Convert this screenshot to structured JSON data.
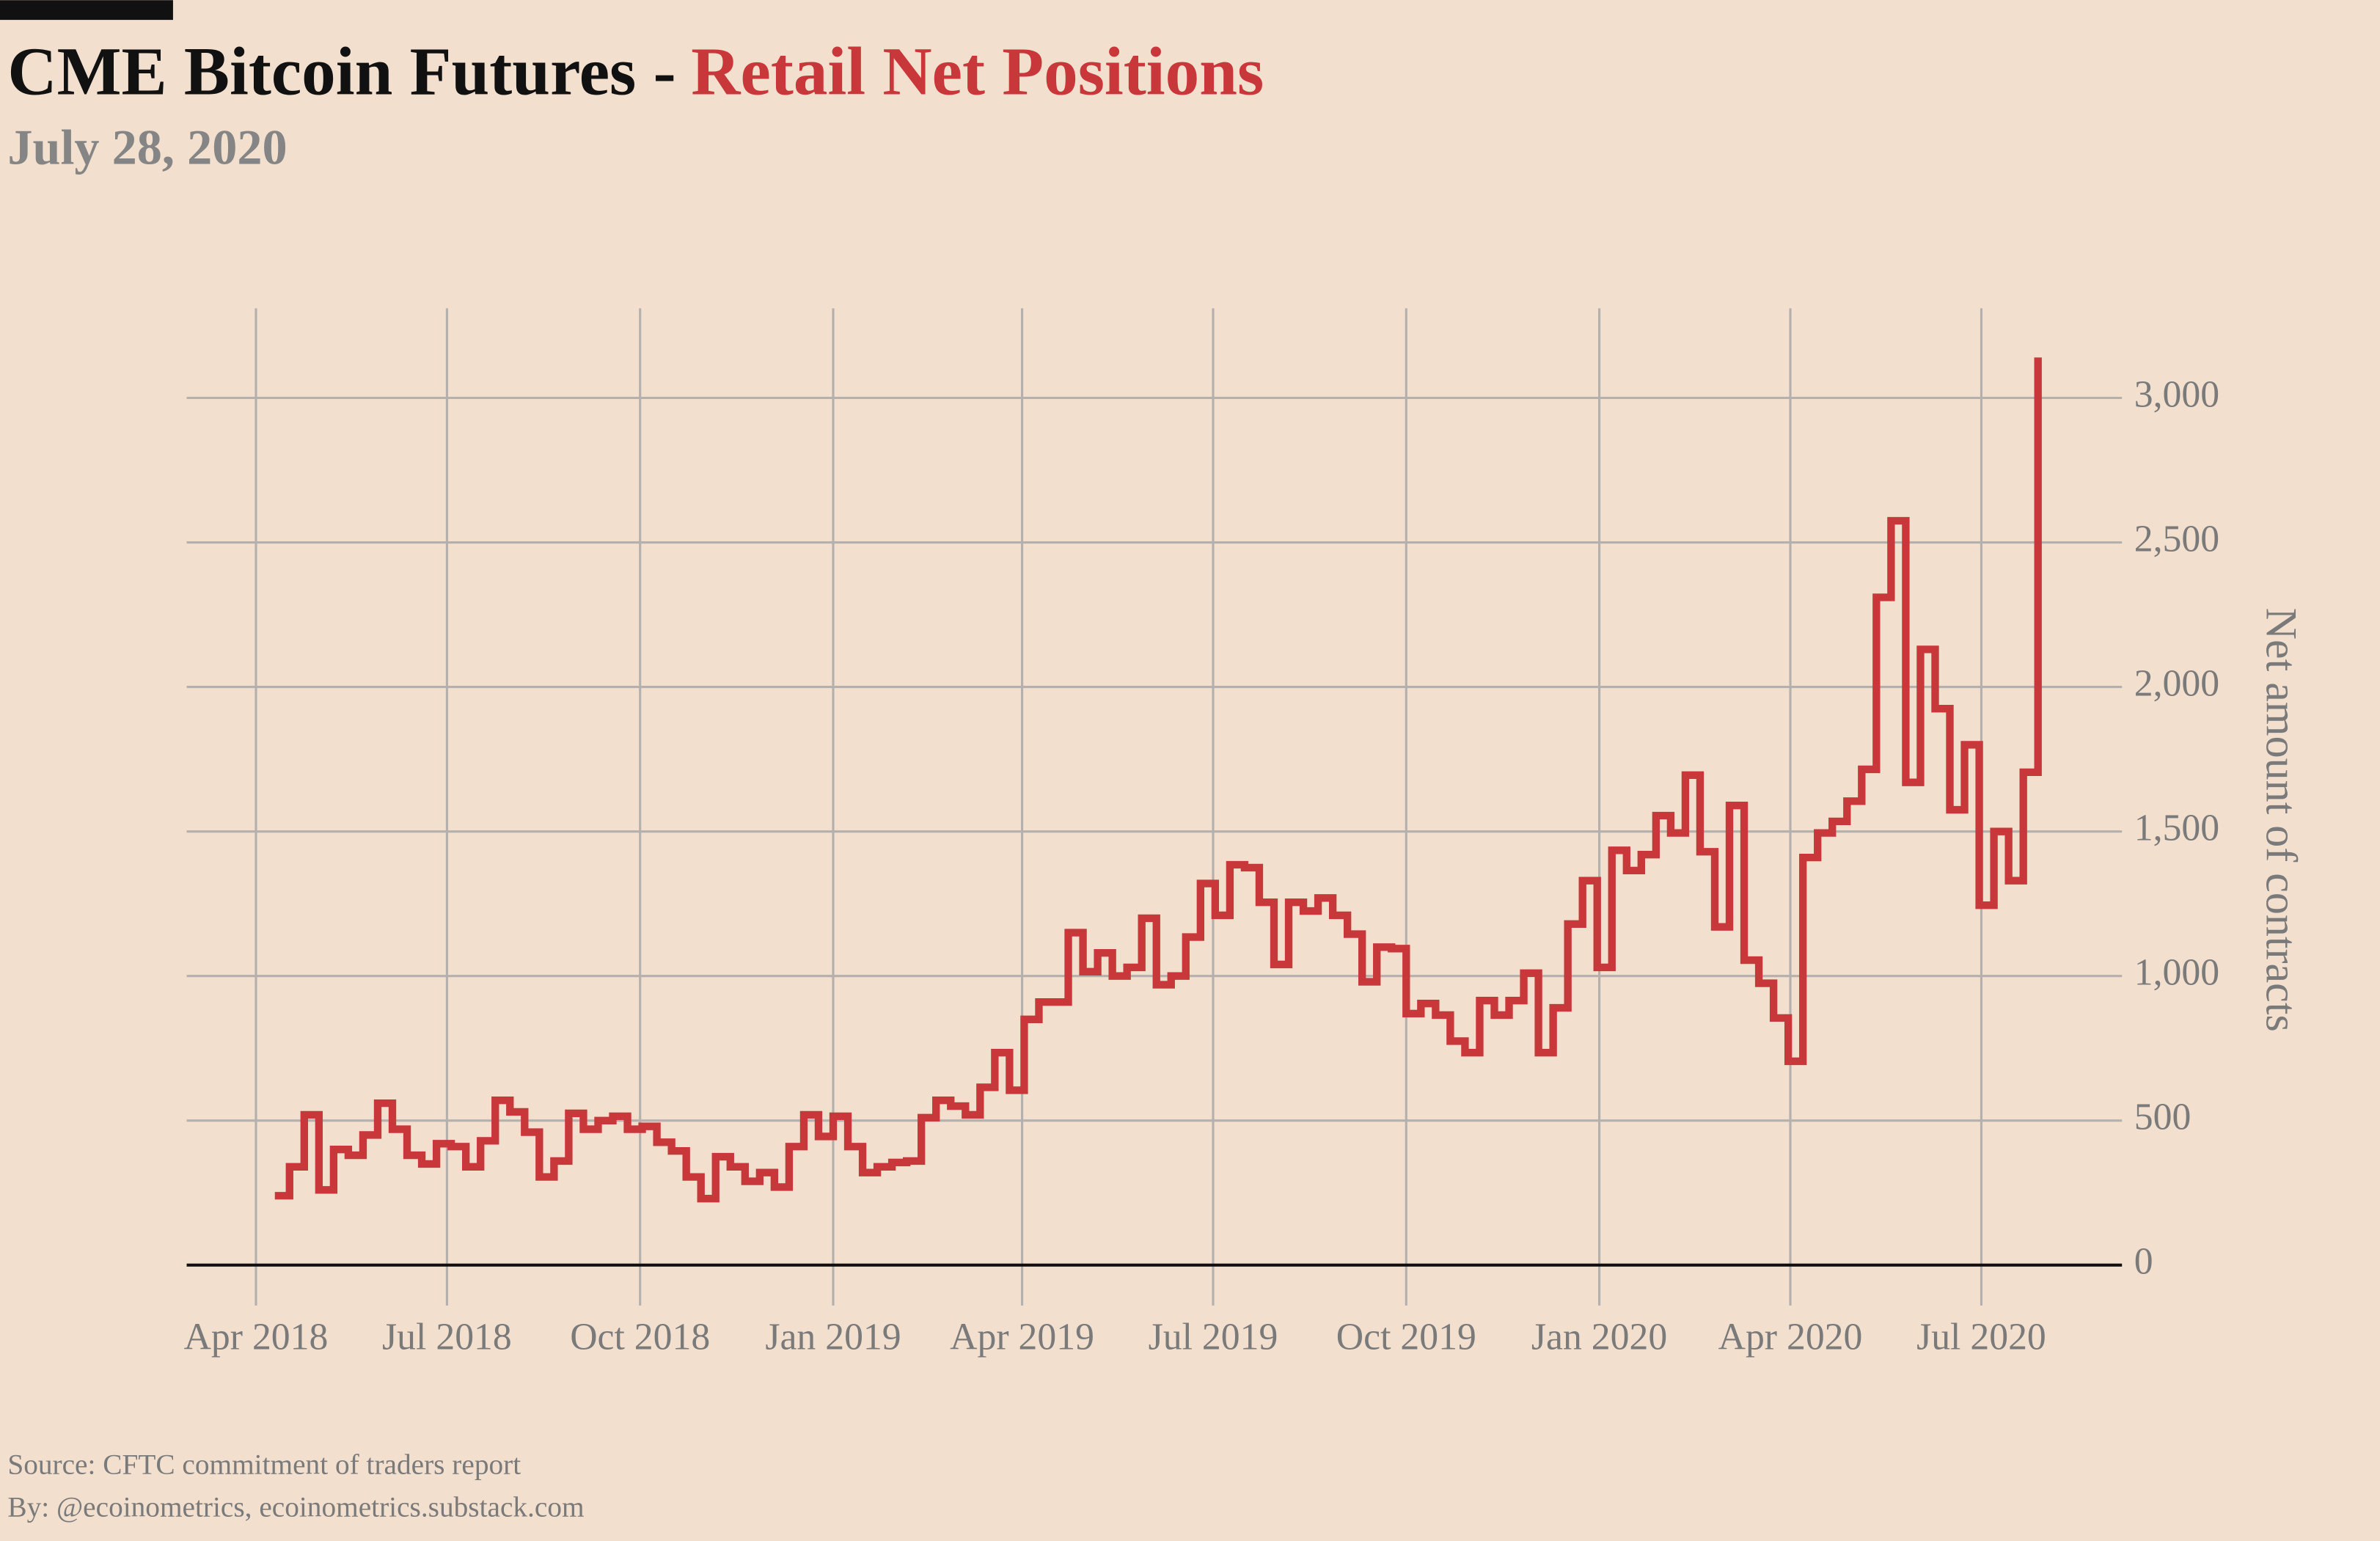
{
  "chart_data": {
    "type": "step",
    "title": "CME Bitcoin Futures -",
    "title_highlight": "Retail Net Positions",
    "subtitle": "July 28, 2020",
    "y_label": "Net amount of contracts",
    "source": "Source: CFTC commitment of traders report",
    "byline": "By: @ecoinometrics, ecoinometrics.substack.com",
    "xlim": [
      "2018-02-27",
      "2020-09-06"
    ],
    "xticks": [
      {
        "value": "2018-04-01",
        "label": "Apr 2018"
      },
      {
        "value": "2018-07-01",
        "label": "Jul 2018"
      },
      {
        "value": "2018-10-01",
        "label": "Oct 2018"
      },
      {
        "value": "2019-01-01",
        "label": "Jan 2019"
      },
      {
        "value": "2019-04-01",
        "label": "Apr 2019"
      },
      {
        "value": "2019-07-01",
        "label": "Jul 2019"
      },
      {
        "value": "2019-10-01",
        "label": "Oct 2019"
      },
      {
        "value": "2020-01-01",
        "label": "Jan 2020"
      },
      {
        "value": "2020-04-01",
        "label": "Apr 2020"
      },
      {
        "value": "2020-07-01",
        "label": "Jul 2020"
      }
    ],
    "ylim": [
      -140,
      3310
    ],
    "yticks": [
      0,
      500,
      {
        "value": 1000,
        "label": "1,000"
      },
      {
        "value": 1500,
        "label": "1,500"
      },
      {
        "value": 2000,
        "label": "2,000"
      },
      {
        "value": 2500,
        "label": "2,500"
      },
      {
        "value": 3000,
        "label": "3,000"
      }
    ],
    "grid": true,
    "y_axis_side": "right",
    "x": [
      "2018-04-10",
      "2018-04-17",
      "2018-04-24",
      "2018-05-01",
      "2018-05-08",
      "2018-05-15",
      "2018-05-22",
      "2018-05-29",
      "2018-06-05",
      "2018-06-12",
      "2018-06-19",
      "2018-06-26",
      "2018-07-03",
      "2018-07-10",
      "2018-07-17",
      "2018-07-24",
      "2018-07-31",
      "2018-08-07",
      "2018-08-14",
      "2018-08-21",
      "2018-08-28",
      "2018-09-04",
      "2018-09-11",
      "2018-09-18",
      "2018-09-25",
      "2018-10-02",
      "2018-10-09",
      "2018-10-16",
      "2018-10-23",
      "2018-10-30",
      "2018-11-06",
      "2018-11-13",
      "2018-11-20",
      "2018-11-27",
      "2018-12-04",
      "2018-12-11",
      "2018-12-18",
      "2018-12-25",
      "2019-01-01",
      "2019-01-08",
      "2019-01-15",
      "2019-01-22",
      "2019-01-29",
      "2019-02-05",
      "2019-02-12",
      "2019-02-19",
      "2019-02-26",
      "2019-03-05",
      "2019-03-12",
      "2019-03-19",
      "2019-03-26",
      "2019-04-02",
      "2019-04-09",
      "2019-04-16",
      "2019-04-23",
      "2019-04-30",
      "2019-05-07",
      "2019-05-14",
      "2019-05-21",
      "2019-05-28",
      "2019-06-04",
      "2019-06-11",
      "2019-06-18",
      "2019-06-25",
      "2019-07-02",
      "2019-07-09",
      "2019-07-16",
      "2019-07-23",
      "2019-07-30",
      "2019-08-06",
      "2019-08-13",
      "2019-08-20",
      "2019-08-27",
      "2019-09-03",
      "2019-09-10",
      "2019-09-17",
      "2019-09-24",
      "2019-10-01",
      "2019-10-08",
      "2019-10-15",
      "2019-10-22",
      "2019-10-29",
      "2019-11-05",
      "2019-11-12",
      "2019-11-19",
      "2019-11-26",
      "2019-12-03",
      "2019-12-10",
      "2019-12-17",
      "2019-12-24",
      "2019-12-31",
      "2020-01-07",
      "2020-01-14",
      "2020-01-21",
      "2020-01-28",
      "2020-02-04",
      "2020-02-11",
      "2020-02-18",
      "2020-02-25",
      "2020-03-03",
      "2020-03-10",
      "2020-03-17",
      "2020-03-24",
      "2020-03-31",
      "2020-04-07",
      "2020-04-14",
      "2020-04-21",
      "2020-04-28",
      "2020-05-05",
      "2020-05-12",
      "2020-05-19",
      "2020-05-26",
      "2020-06-02",
      "2020-06-09",
      "2020-06-16",
      "2020-06-23",
      "2020-06-30",
      "2020-07-07",
      "2020-07-14",
      "2020-07-21",
      "2020-07-28"
    ],
    "series": [
      {
        "name": "Retail net positions",
        "color": "#c8373a",
        "values": [
          240,
          340,
          520,
          260,
          400,
          380,
          450,
          560,
          470,
          380,
          350,
          420,
          410,
          340,
          430,
          570,
          530,
          460,
          305,
          360,
          525,
          470,
          500,
          515,
          470,
          480,
          425,
          395,
          305,
          230,
          375,
          340,
          290,
          320,
          270,
          410,
          520,
          445,
          515,
          410,
          320,
          340,
          355,
          360,
          510,
          570,
          550,
          520,
          615,
          735,
          605,
          850,
          910,
          910,
          1150,
          1015,
          1080,
          1000,
          1030,
          1200,
          970,
          1000,
          1135,
          1320,
          1210,
          1385,
          1375,
          1255,
          1040,
          1255,
          1225,
          1270,
          1210,
          1145,
          980,
          1100,
          1095,
          870,
          905,
          865,
          775,
          735,
          915,
          865,
          915,
          1010,
          735,
          890,
          1180,
          1330,
          1030,
          1435,
          1365,
          1420,
          1555,
          1495,
          1695,
          1430,
          1170,
          1590,
          1055,
          975,
          855,
          705,
          1410,
          1495,
          1535,
          1605,
          1715,
          2310,
          2575,
          1670,
          2130,
          1925,
          1575,
          1800,
          1245,
          1500,
          1330,
          1705,
          3140
        ]
      }
    ]
  }
}
